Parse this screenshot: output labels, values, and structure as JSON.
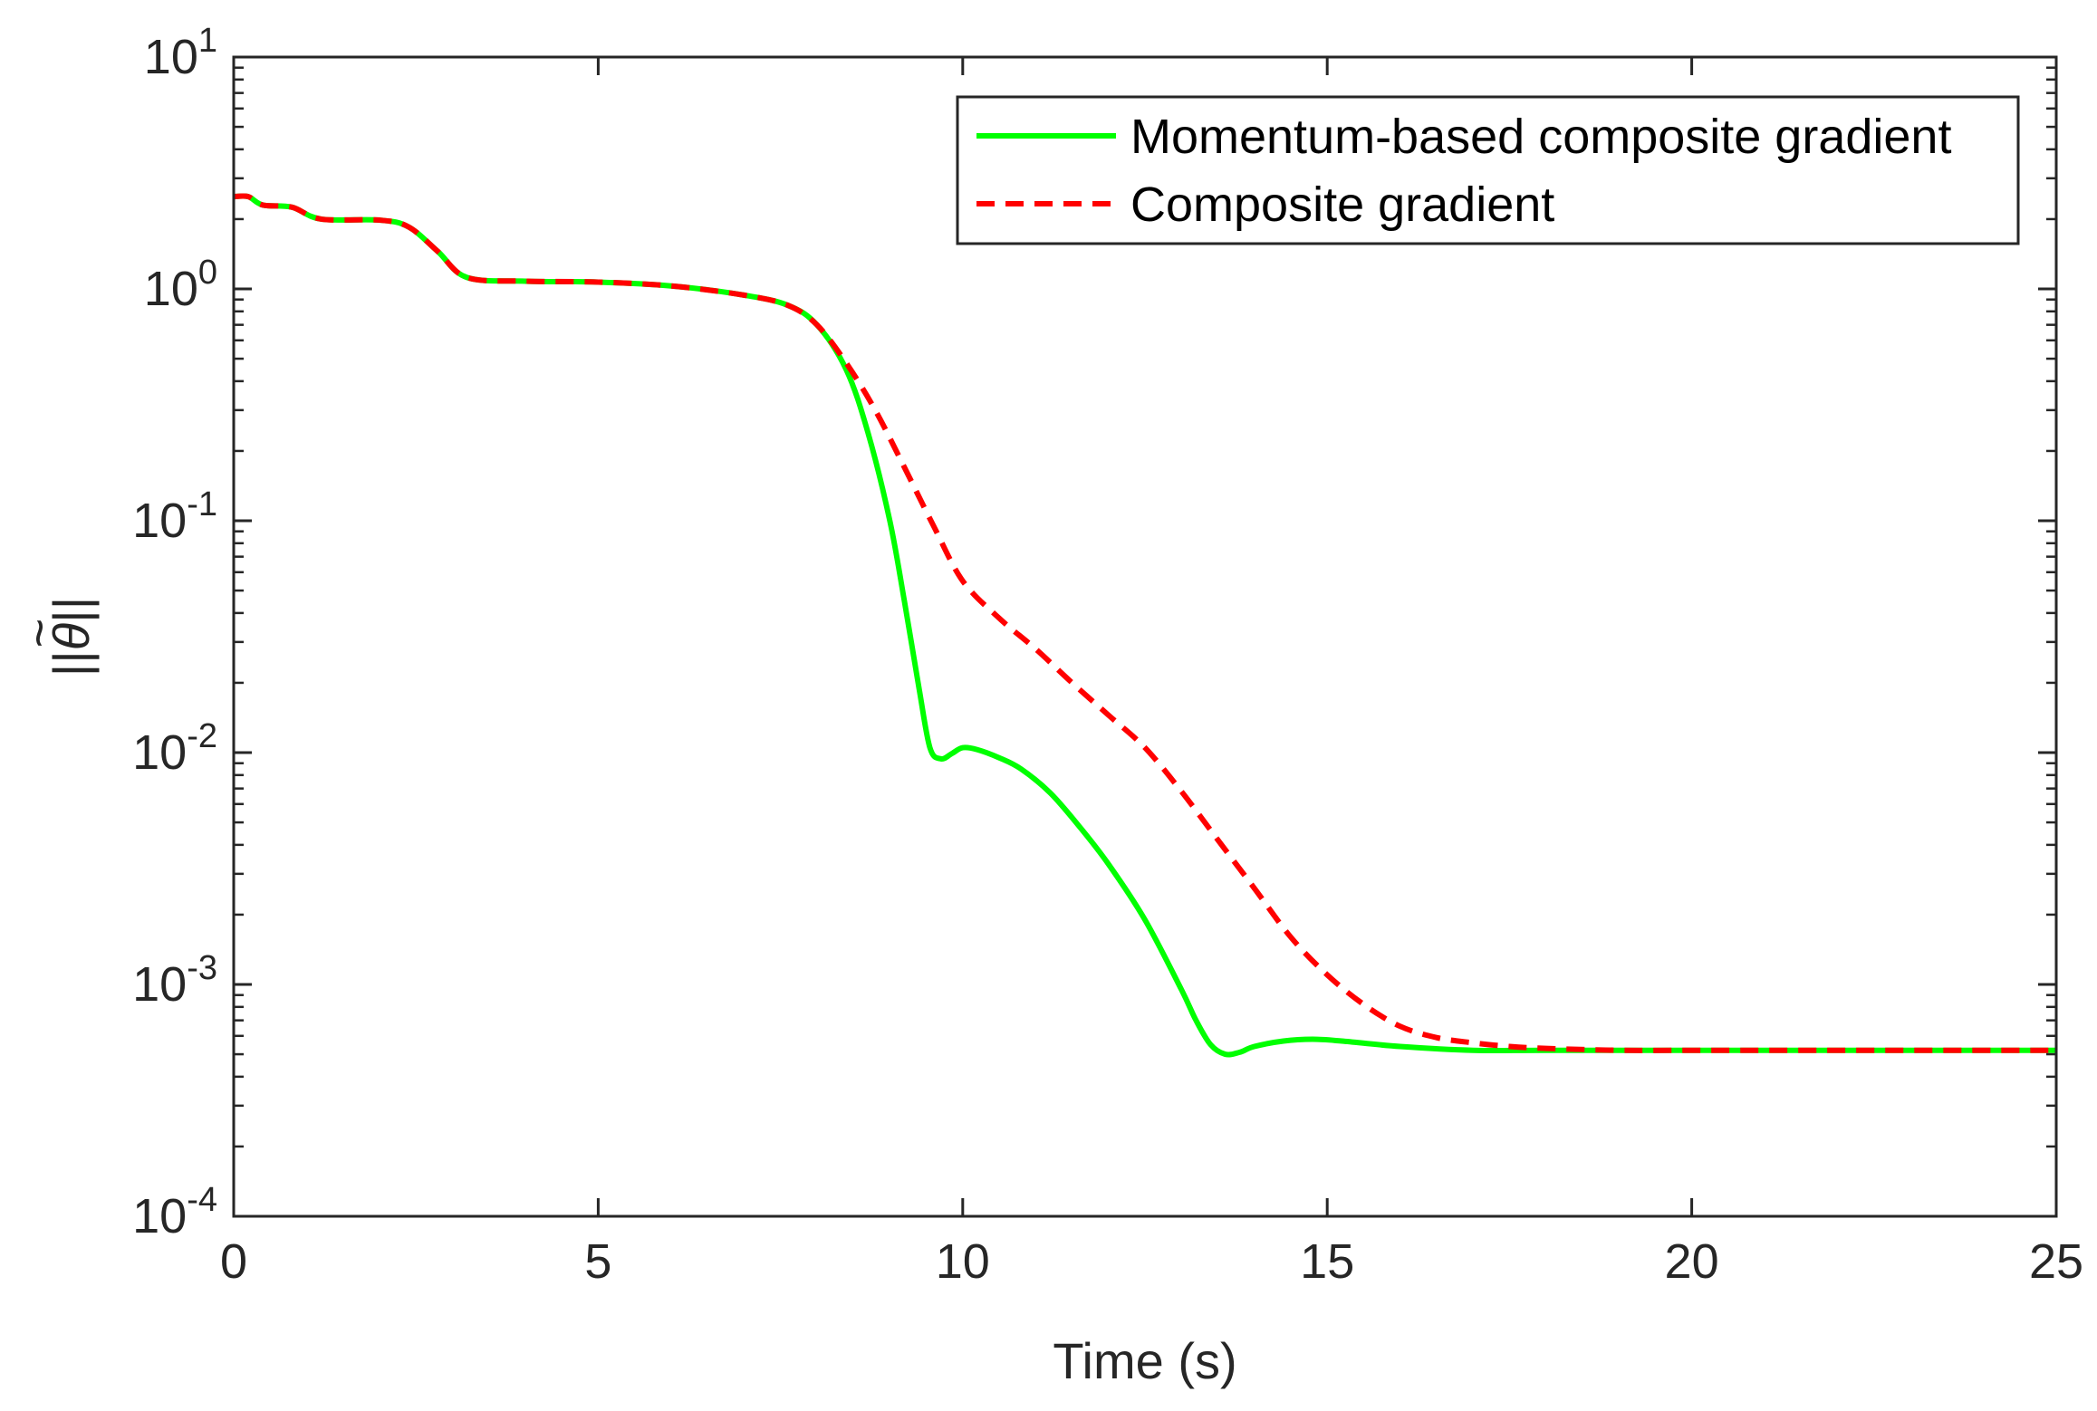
{
  "chart_data": {
    "type": "line",
    "title": "",
    "xlabel": "Time (s)",
    "ylabel": "||θ̃||",
    "ylabel_parts": {
      "bar": "||",
      "symbol": "θ",
      "accent": "~"
    },
    "yscale": "log",
    "xlim": [
      0,
      25
    ],
    "ylim_exponents": [
      -4,
      1
    ],
    "x_ticks": [
      "0",
      "5",
      "10",
      "15",
      "20",
      "25"
    ],
    "y_ticks": [
      {
        "base": "10",
        "exp": "-4"
      },
      {
        "base": "10",
        "exp": "-3"
      },
      {
        "base": "10",
        "exp": "-2"
      },
      {
        "base": "10",
        "exp": "-1"
      },
      {
        "base": "10",
        "exp": "0"
      },
      {
        "base": "10",
        "exp": "1"
      }
    ],
    "grid": false,
    "legend_position": "top-right",
    "series": [
      {
        "name": "Momentum-based composite gradient",
        "color": "#00ff00",
        "style": "solid",
        "x": [
          0,
          0.2,
          0.4,
          0.8,
          1.2,
          2.0,
          2.4,
          2.8,
          3.2,
          4.0,
          5.0,
          6.0,
          7.0,
          7.6,
          8.0,
          8.4,
          8.7,
          9.0,
          9.2,
          9.4,
          9.55,
          9.7,
          9.85,
          10.0,
          10.2,
          10.5,
          10.8,
          11.2,
          11.6,
          12.0,
          12.5,
          13.0,
          13.2,
          13.4,
          13.6,
          13.8,
          14.0,
          14.4,
          14.8,
          15.2,
          16.0,
          17.0,
          18.0,
          20.0,
          22.0,
          25.0
        ],
        "y": [
          2.5,
          2.5,
          2.3,
          2.25,
          2.0,
          1.98,
          1.85,
          1.45,
          1.12,
          1.08,
          1.07,
          1.03,
          0.94,
          0.85,
          0.7,
          0.45,
          0.24,
          0.1,
          0.045,
          0.019,
          0.0105,
          0.0094,
          0.0099,
          0.0105,
          0.0103,
          0.0095,
          0.0085,
          0.0067,
          0.0048,
          0.0033,
          0.0019,
          0.00095,
          0.0007,
          0.00055,
          0.0005,
          0.00051,
          0.00054,
          0.00057,
          0.00058,
          0.00057,
          0.00054,
          0.00052,
          0.00052,
          0.00052,
          0.00052,
          0.00052
        ]
      },
      {
        "name": "Composite gradient",
        "color": "#ff0000",
        "style": "dashed",
        "x": [
          0,
          0.2,
          0.4,
          0.8,
          1.2,
          2.0,
          2.4,
          2.8,
          3.2,
          4.0,
          5.0,
          6.0,
          7.0,
          7.6,
          8.0,
          8.4,
          8.8,
          9.2,
          9.6,
          10.0,
          10.5,
          11.0,
          11.5,
          12.0,
          12.5,
          13.0,
          13.5,
          14.0,
          14.5,
          15.0,
          15.5,
          16.0,
          16.5,
          17.0,
          17.5,
          18.0,
          19.0,
          20.0,
          22.0,
          25.0
        ],
        "y": [
          2.5,
          2.5,
          2.3,
          2.25,
          2.0,
          1.98,
          1.85,
          1.45,
          1.12,
          1.08,
          1.07,
          1.03,
          0.94,
          0.85,
          0.7,
          0.48,
          0.3,
          0.17,
          0.095,
          0.055,
          0.038,
          0.028,
          0.02,
          0.0145,
          0.0105,
          0.0068,
          0.0042,
          0.0026,
          0.0016,
          0.0011,
          0.00082,
          0.00066,
          0.00059,
          0.00056,
          0.00054,
          0.00053,
          0.00052,
          0.00052,
          0.00052,
          0.00052
        ]
      }
    ]
  }
}
